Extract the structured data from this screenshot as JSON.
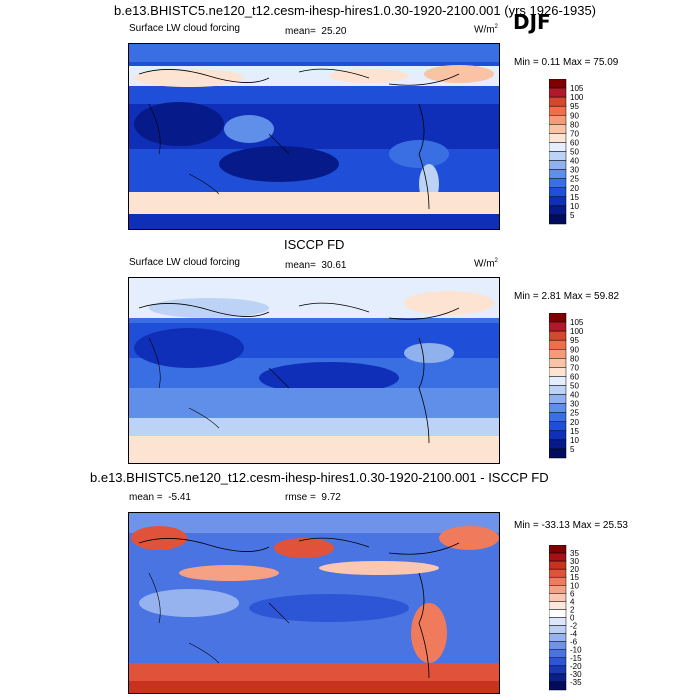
{
  "season": "DJF",
  "panel1": {
    "title": "b.e13.BHISTC5.ne120_t12.cesm-ihesp-hires1.0.30-1920-2100.001 (yrs 1926-1935)",
    "variable": "Surface LW cloud forcing",
    "mean_label": "mean=",
    "mean": "25.20",
    "units_base": "W/m",
    "units_exp": "2",
    "minmax": "Min =   0.11 Max =  75.09"
  },
  "panel2": {
    "title": "ISCCP FD",
    "variable": "Surface LW cloud forcing",
    "mean_label": "mean=",
    "mean": "30.61",
    "units_base": "W/m",
    "units_exp": "2",
    "minmax": "Min =   2.81 Max =  59.82"
  },
  "panel3": {
    "title": "b.e13.BHISTC5.ne120_t12.cesm-ihesp-hires1.0.30-1920-2100.001 - ISCCP FD",
    "mean_label": "mean =",
    "mean": "-5.41",
    "rmse_label": "rmse =",
    "rmse": "9.72",
    "minmax": "Min = -33.13 Max =  25.53"
  },
  "chart_data": [
    {
      "type": "heatmap",
      "title": "Surface LW cloud forcing",
      "colorbar": {
        "levels": [
          "105",
          "100",
          "95",
          "90",
          "80",
          "70",
          "60",
          "50",
          "40",
          "30",
          "25",
          "20",
          "15",
          "10",
          "5"
        ],
        "colors": [
          "#7f0000",
          "#b2182b",
          "#d6472f",
          "#ef6f4a",
          "#f79a78",
          "#fbc3a5",
          "#fde3d2",
          "#e4eefc",
          "#bcd3f5",
          "#8fb1ee",
          "#5f8fe8",
          "#3a6fe3",
          "#1f4fd8",
          "#0f2fb8",
          "#061a8a",
          "#020c5c"
        ]
      },
      "mean": 25.2,
      "min": 0.11,
      "max": 75.09
    },
    {
      "type": "heatmap",
      "title": "ISCCP FD",
      "colorbar": {
        "levels": [
          "105",
          "100",
          "95",
          "90",
          "80",
          "70",
          "60",
          "50",
          "40",
          "30",
          "25",
          "20",
          "15",
          "10",
          "5"
        ],
        "colors": [
          "#7f0000",
          "#b2182b",
          "#d6472f",
          "#ef6f4a",
          "#f79a78",
          "#fbc3a5",
          "#fde3d2",
          "#e4eefc",
          "#bcd3f5",
          "#8fb1ee",
          "#5f8fe8",
          "#3a6fe3",
          "#1f4fd8",
          "#0f2fb8",
          "#061a8a",
          "#020c5c"
        ]
      },
      "mean": 30.61,
      "min": 2.81,
      "max": 59.82
    },
    {
      "type": "heatmap",
      "title": "b.e13.BHISTC5.ne120_t12.cesm-ihesp-hires1.0.30-1920-2100.001 - ISCCP FD",
      "colorbar": {
        "levels": [
          "35",
          "30",
          "20",
          "15",
          "10",
          "6",
          "4",
          "2",
          "0",
          "-2",
          "-4",
          "-6",
          "-10",
          "-15",
          "-20",
          "-30",
          "-35"
        ],
        "colors": [
          "#7f0000",
          "#a50f15",
          "#c8321f",
          "#e0533a",
          "#ef7a5c",
          "#f7a184",
          "#fbc7b0",
          "#fde7dc",
          "#ffffff",
          "#dce7fb",
          "#bcd0f5",
          "#96b3ef",
          "#6f93e9",
          "#4a74e2",
          "#2d56d6",
          "#1838b4",
          "#0a1f88",
          "#020c5c"
        ]
      },
      "mean": -5.41,
      "rmse": 9.72,
      "min": -33.13,
      "max": 25.53
    }
  ]
}
